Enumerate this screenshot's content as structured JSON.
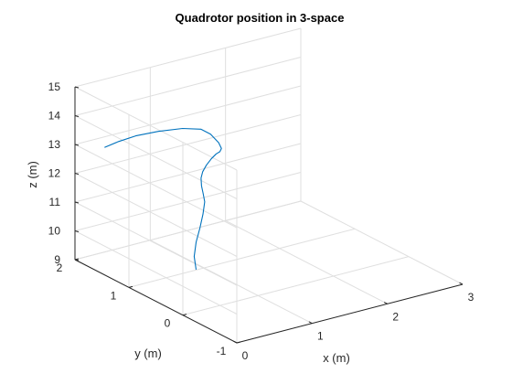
{
  "chart_data": {
    "type": "line",
    "title": "Quadrotor position in 3-space",
    "xlabel": "x (m)",
    "ylabel": "y (m)",
    "zlabel": "z (m)",
    "xlim": [
      0,
      3
    ],
    "ylim": [
      -1,
      2
    ],
    "zlim": [
      9,
      15
    ],
    "xticks": [
      "0",
      "1",
      "2",
      "3"
    ],
    "yticks": [
      "-1",
      "0",
      "1",
      "2"
    ],
    "zticks": [
      "9",
      "10",
      "11",
      "12",
      "13",
      "14",
      "15"
    ],
    "grid": true,
    "series": [
      {
        "color": "#0072bd",
        "x": [
          0.85,
          0.86,
          0.95,
          1.05,
          1.12,
          1.15,
          1.13,
          1.1,
          1.08,
          1.08,
          1.1,
          1.13,
          1.16,
          1.18,
          1.2,
          1.25,
          1.3,
          1.35,
          1.25,
          1.0,
          0.7,
          0.4,
          0.12
        ],
        "y": [
          0.94,
          0.99,
          1.08,
          1.15,
          1.19,
          1.2,
          1.2,
          1.19,
          1.17,
          1.14,
          1.1,
          1.05,
          1.0,
          0.96,
          0.96,
          1.08,
          1.3,
          1.55,
          1.75,
          1.85,
          1.85,
          1.75,
          1.62
        ],
        "z": [
          9.1,
          9.5,
          9.85,
          10.2,
          10.6,
          11.0,
          11.3,
          11.6,
          11.9,
          12.15,
          12.4,
          12.65,
          12.85,
          12.95,
          13.05,
          13.1,
          13.15,
          13.05,
          12.95,
          12.92,
          12.97,
          13.07,
          13.18
        ]
      }
    ]
  }
}
